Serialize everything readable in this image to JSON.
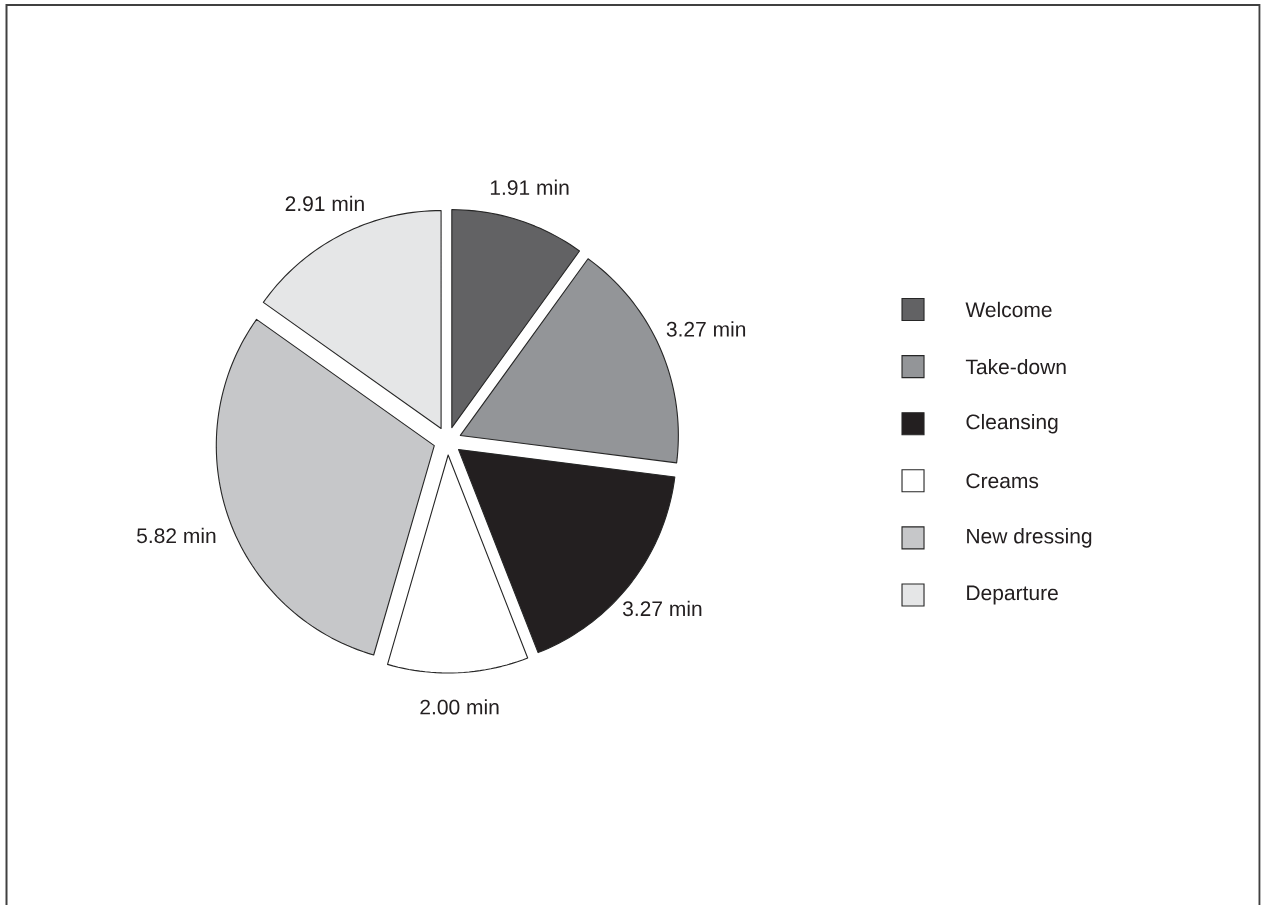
{
  "chart_data": {
    "type": "pie",
    "categories": [
      "Welcome",
      "Take-down",
      "Cleansing",
      "Creams",
      "New dressing",
      "Departure"
    ],
    "values": [
      1.91,
      3.27,
      3.27,
      2.0,
      5.82,
      2.91
    ],
    "colors": [
      "#626264",
      "#939598",
      "#231f20",
      "#ffffff",
      "#c6c7c9",
      "#e5e6e7"
    ],
    "value_labels": [
      "1.91 min",
      "3.27 min",
      "3.27 min",
      "2.00 min",
      "5.82 min",
      "2.91 min"
    ],
    "legend": "right"
  }
}
